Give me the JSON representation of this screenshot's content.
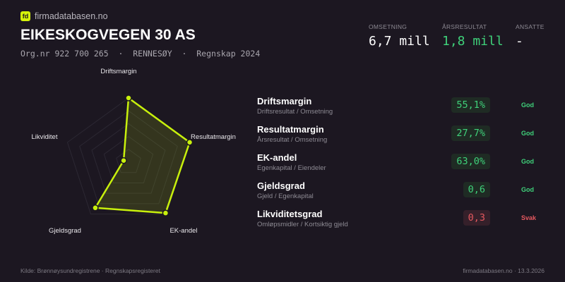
{
  "brand": {
    "logo_text": "fd",
    "site": "firmadatabasen.no"
  },
  "company": {
    "name": "EIKESKOGVEGEN 30 AS",
    "subtitle": "Org.nr 922 700 265  ·  RENNESØY  ·  Regnskap 2024"
  },
  "kpis": [
    {
      "label": "OMSETNING",
      "value": "6,7 mill"
    },
    {
      "label": "ÅRSRESULTAT",
      "value": "1,8 mill"
    },
    {
      "label": "ANSATTE",
      "value": "-"
    }
  ],
  "metrics": [
    {
      "name": "Driftsmargin",
      "desc": "Driftsresultat / Omsetning",
      "value": "55,1%",
      "status": "God"
    },
    {
      "name": "Resultatmargin",
      "desc": "Årsresultat / Omsetning",
      "value": "27,7%",
      "status": "God"
    },
    {
      "name": "EK-andel",
      "desc": "Egenkapital / Eiendeler",
      "value": "63,0%",
      "status": "God"
    },
    {
      "name": "Gjeldsgrad",
      "desc": "Gjeld / Egenkapital",
      "value": "0,6",
      "status": "God"
    },
    {
      "name": "Likviditetsgrad",
      "desc": "Omløpsmidler / Kortsiktig gjeld",
      "value": "0,3",
      "status": "Svak"
    }
  ],
  "chart_data": {
    "type": "radar",
    "axes": [
      "Driftsmargin",
      "Resultatmargin",
      "EK-andel",
      "Gjeldsgrad",
      "Likviditet"
    ],
    "scores": [
      1.0,
      1.0,
      0.98,
      0.88,
      0.08
    ],
    "range": [
      0,
      1
    ],
    "grid_rings": 5,
    "color": "#c8f00c"
  },
  "colors": {
    "good": "#3fd17a",
    "bad": "#e5585f",
    "accent": "#c8f00c"
  },
  "footer": {
    "source": "Kilde: Brønnøysundregistrene · Regnskapsregisteret",
    "right": "firmadatabasen.no · 13.3.2026"
  }
}
